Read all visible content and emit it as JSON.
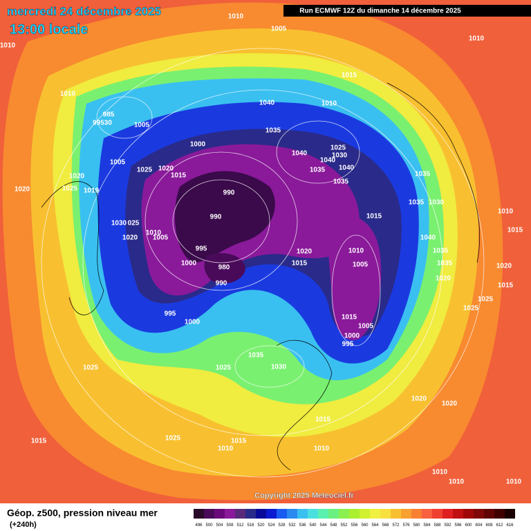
{
  "header": {
    "date": "mercredi 24 décembre 2025",
    "time": "13:00 locale",
    "run": "Run ECMWF 12Z du dimanche 14 décembre 2025"
  },
  "copyright": "Copyright 2025 Meteociel.fr",
  "footer": {
    "title": "Géop. z500, pression niveau mer",
    "lead": "(+240h)"
  },
  "isobar_labels": [
    "1010",
    "1005",
    "1010",
    "1010",
    "1010",
    "1015",
    "1040",
    "1010",
    "985",
    "99530",
    "1005",
    "1035",
    "1000",
    "1040",
    "1025",
    "1030",
    "1040",
    "1005",
    "1025",
    "1020",
    "1015",
    "1020",
    "1035",
    "1040",
    "1035",
    "1035",
    "1020",
    "1025",
    "1019",
    "990",
    "1035",
    "1030",
    "990",
    "1015",
    "1030",
    "025",
    "1010",
    "1005",
    "1020",
    "1040",
    "995",
    "1020",
    "1010",
    "1035",
    "1000",
    "980",
    "1015",
    "1005",
    "1035",
    "1020",
    "990",
    "1020",
    "1015",
    "995",
    "1025",
    "1025",
    "1015",
    "1000",
    "1005",
    "1000",
    "995",
    "1035",
    "1030",
    "1025",
    "1025",
    "1020",
    "1020",
    "1015",
    "1025",
    "1015",
    "1015",
    "1010",
    "1010",
    "1010",
    "1010",
    "1010",
    "1015",
    "1010"
  ],
  "colorbar": {
    "ticks": [
      496,
      500,
      504,
      508,
      512,
      516,
      520,
      524,
      528,
      532,
      536,
      540,
      544,
      548,
      552,
      556,
      560,
      564,
      568,
      572,
      576,
      580,
      584,
      588,
      592,
      596,
      600,
      604,
      608,
      612,
      616
    ],
    "colors": [
      "#2a0a2a",
      "#4a0a5a",
      "#6a0a7a",
      "#8a1a9a",
      "#5a2a7a",
      "#2a2a8a",
      "#0a0a9a",
      "#0a1ad0",
      "#1a5af0",
      "#2a8af0",
      "#3ac0f0",
      "#4ae0e0",
      "#5af0b0",
      "#6af080",
      "#8af050",
      "#aaf030",
      "#d0f030",
      "#f0f040",
      "#f8e040",
      "#f8c030",
      "#f8a030",
      "#f88030",
      "#f86040",
      "#f04030",
      "#e02020",
      "#c01010",
      "#a00808",
      "#800808",
      "#600404",
      "#400000",
      "#1a0000"
    ]
  }
}
